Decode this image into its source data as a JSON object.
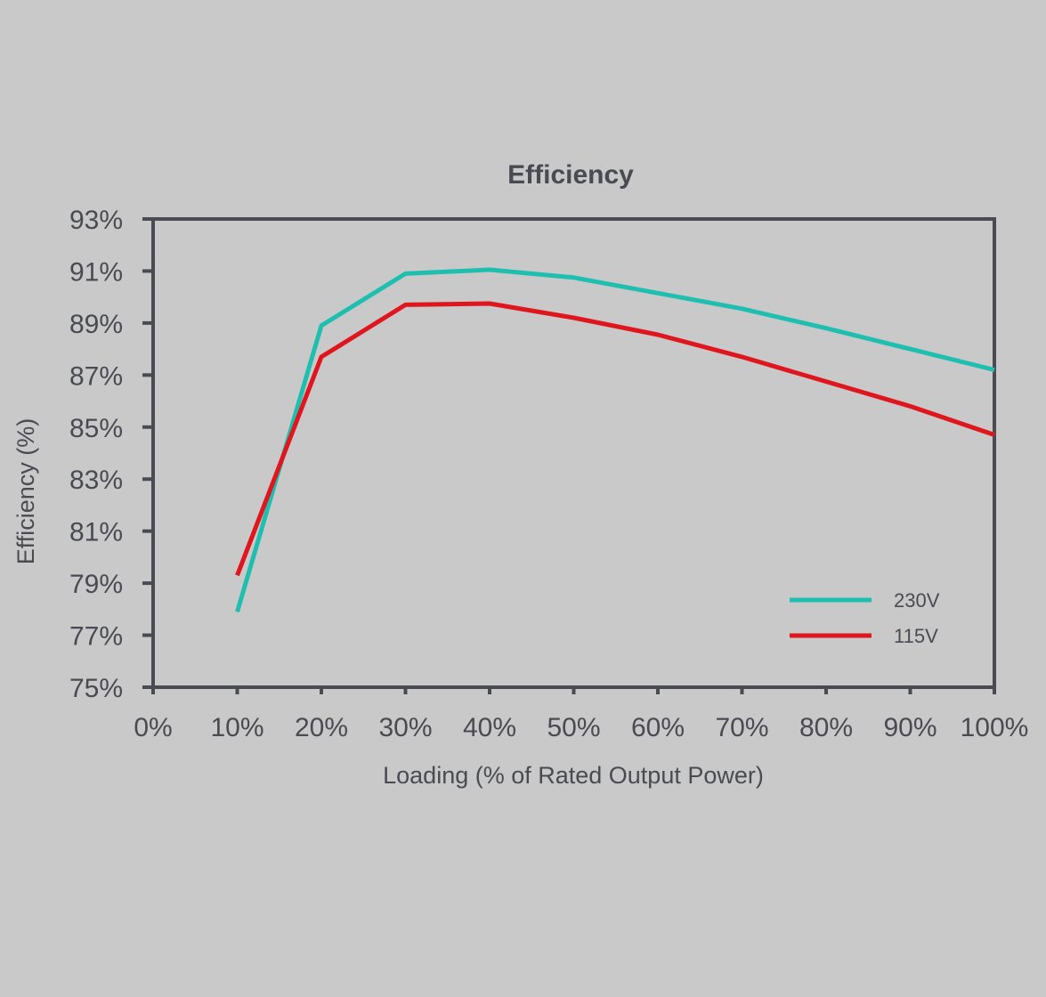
{
  "colors": {
    "background": "#c9c9c9",
    "axis": "#4a4b52",
    "series_230v": "#1fbfb0",
    "series_115v": "#e0161e"
  },
  "chart_data": {
    "type": "line",
    "title": "Efficiency",
    "xlabel": "Loading (% of Rated Output Power)",
    "ylabel": "Efficiency (%)",
    "xlim": [
      0,
      100
    ],
    "ylim": [
      75,
      93
    ],
    "x_ticks": [
      "0%",
      "10%",
      "20%",
      "30%",
      "40%",
      "50%",
      "60%",
      "70%",
      "80%",
      "90%",
      "100%"
    ],
    "y_ticks": [
      "75%",
      "77%",
      "79%",
      "81%",
      "83%",
      "85%",
      "87%",
      "89%",
      "91%",
      "93%"
    ],
    "grid": false,
    "legend_position": "bottom-right",
    "series": [
      {
        "name": "230V",
        "color": "#1fbfb0",
        "x": [
          10,
          20,
          30,
          40,
          50,
          60,
          70,
          80,
          90,
          100
        ],
        "y": [
          77.9,
          88.9,
          90.9,
          91.05,
          90.75,
          90.15,
          89.55,
          88.8,
          88.0,
          87.2
        ]
      },
      {
        "name": "115V",
        "color": "#e0161e",
        "x": [
          10,
          20,
          30,
          40,
          50,
          60,
          70,
          80,
          90,
          100
        ],
        "y": [
          79.3,
          87.7,
          89.7,
          89.75,
          89.2,
          88.55,
          87.7,
          86.75,
          85.8,
          84.7
        ]
      }
    ]
  }
}
